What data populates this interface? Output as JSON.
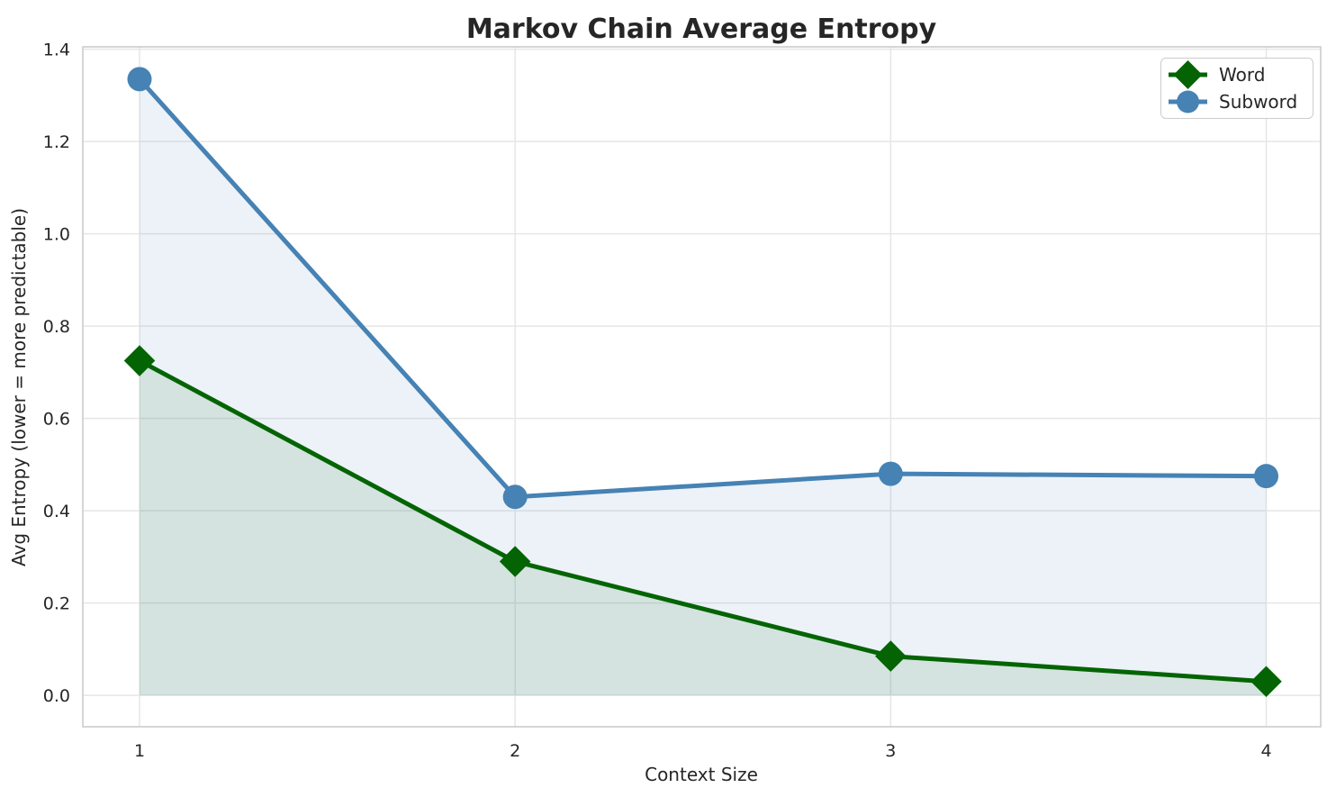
{
  "chart_data": {
    "type": "line",
    "title": "Markov Chain Average Entropy",
    "xlabel": "Context Size",
    "ylabel": "Avg Entropy (lower = more predictable)",
    "x": [
      1,
      2,
      3,
      4
    ],
    "series": [
      {
        "name": "Word",
        "values": [
          0.725,
          0.29,
          0.085,
          0.03
        ],
        "color": "#046404",
        "marker": "diamond",
        "area_fill": true
      },
      {
        "name": "Subword",
        "values": [
          1.335,
          0.43,
          0.48,
          0.475
        ],
        "color": "#4682B4",
        "marker": "circle",
        "area_fill": true
      }
    ],
    "fill_opacity": 0.1,
    "fill_baseline": 0,
    "line_width": 5,
    "axes": {
      "xlim": [
        0.849,
        4.145
      ],
      "ylim": [
        -0.068,
        1.405
      ],
      "xticks": {
        "values": [
          1,
          2,
          3,
          4
        ],
        "labels": [
          "1",
          "2",
          "3",
          "4"
        ]
      },
      "yticks": {
        "values": [
          0.0,
          0.2,
          0.4,
          0.6,
          0.8,
          1.0,
          1.2,
          1.4
        ],
        "labels": [
          "0.0",
          "0.2",
          "0.4",
          "0.6",
          "0.8",
          "1.0",
          "1.2",
          "1.4"
        ]
      }
    },
    "grid": true,
    "legend": {
      "position": "upper right",
      "entries": [
        "Word",
        "Subword"
      ]
    }
  }
}
